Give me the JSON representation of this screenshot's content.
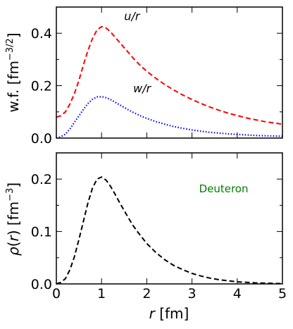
{
  "chart_data": [
    {
      "type": "line",
      "ylabel": "w.f.  [fm^-3/2]",
      "xlim": [
        0,
        5
      ],
      "ylim": [
        0,
        0.5
      ],
      "yticks": [
        "0.0",
        "0.2",
        "0.4"
      ],
      "series": [
        {
          "name": "u/r",
          "color": "#ff0000",
          "style": "dashed",
          "x": [
            0,
            0.1,
            0.2,
            0.3,
            0.4,
            0.5,
            0.6,
            0.7,
            0.8,
            0.9,
            1.0,
            1.1,
            1.2,
            1.3,
            1.4,
            1.5,
            1.6,
            1.7,
            1.8,
            1.9,
            2.0,
            2.2,
            2.4,
            2.6,
            2.8,
            3.0,
            3.2,
            3.4,
            3.6,
            3.8,
            4.0,
            4.2,
            4.4,
            4.6,
            4.8,
            5.0
          ],
          "y": [
            0.08,
            0.085,
            0.1,
            0.13,
            0.17,
            0.22,
            0.28,
            0.335,
            0.38,
            0.413,
            0.425,
            0.42,
            0.405,
            0.385,
            0.365,
            0.345,
            0.325,
            0.305,
            0.287,
            0.27,
            0.255,
            0.228,
            0.204,
            0.183,
            0.164,
            0.147,
            0.132,
            0.118,
            0.106,
            0.095,
            0.086,
            0.077,
            0.07,
            0.063,
            0.058,
            0.053
          ]
        },
        {
          "name": "w/r",
          "color": "#0000ff",
          "style": "dotted",
          "x": [
            0,
            0.1,
            0.2,
            0.3,
            0.4,
            0.5,
            0.6,
            0.7,
            0.8,
            0.9,
            1.0,
            1.1,
            1.2,
            1.3,
            1.4,
            1.5,
            1.6,
            1.7,
            1.8,
            1.9,
            2.0,
            2.2,
            2.4,
            2.6,
            2.8,
            3.0,
            3.2,
            3.4,
            3.6,
            3.8,
            4.0,
            4.2,
            4.4,
            4.6,
            4.8,
            5.0
          ],
          "y": [
            0.0,
            0.005,
            0.015,
            0.035,
            0.06,
            0.085,
            0.11,
            0.132,
            0.148,
            0.157,
            0.158,
            0.154,
            0.147,
            0.137,
            0.127,
            0.117,
            0.107,
            0.098,
            0.09,
            0.082,
            0.075,
            0.063,
            0.053,
            0.044,
            0.037,
            0.031,
            0.026,
            0.022,
            0.019,
            0.016,
            0.014,
            0.012,
            0.01,
            0.009,
            0.008,
            0.007
          ]
        }
      ]
    },
    {
      "type": "line",
      "xlabel": "r  [fm]",
      "ylabel": "ρ(r)  [fm^-3]",
      "xlim": [
        0,
        5
      ],
      "ylim": [
        0,
        0.25
      ],
      "xticks": [
        "0",
        "1",
        "2",
        "3",
        "4",
        "5"
      ],
      "yticks": [
        "0.0",
        "0.1",
        "0.2"
      ],
      "annotation": "Deuteron",
      "series": [
        {
          "name": "Deuteron",
          "color": "#000000",
          "style": "dashed",
          "x": [
            0,
            0.1,
            0.2,
            0.3,
            0.4,
            0.5,
            0.6,
            0.7,
            0.8,
            0.9,
            1.0,
            1.1,
            1.2,
            1.3,
            1.4,
            1.5,
            1.6,
            1.7,
            1.8,
            1.9,
            2.0,
            2.2,
            2.4,
            2.6,
            2.8,
            3.0,
            3.2,
            3.4,
            3.6,
            3.8,
            4.0,
            4.2,
            4.4,
            4.6,
            4.8,
            5.0
          ],
          "y": [
            0.0,
            0.003,
            0.01,
            0.027,
            0.052,
            0.085,
            0.12,
            0.155,
            0.183,
            0.2,
            0.204,
            0.198,
            0.186,
            0.171,
            0.155,
            0.14,
            0.125,
            0.111,
            0.099,
            0.088,
            0.077,
            0.06,
            0.046,
            0.035,
            0.027,
            0.02,
            0.015,
            0.011,
            0.008,
            0.006,
            0.004,
            0.003,
            0.002,
            0.0015,
            0.001,
            0.0007
          ]
        }
      ]
    }
  ]
}
